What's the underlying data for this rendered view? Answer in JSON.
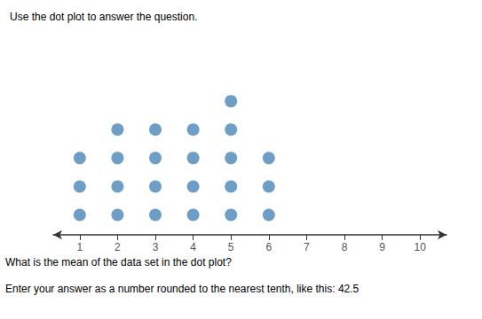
{
  "chart_data": {
    "type": "dot",
    "title": "Use the dot plot to answer the question.",
    "annotations": [
      "What is the mean of the data set in the dot plot?",
      "Enter your answer as a number rounded to the nearest tenth, like this: 42.5"
    ],
    "x": [
      1,
      2,
      3,
      4,
      5,
      6
    ],
    "values": [
      3,
      4,
      4,
      4,
      5,
      3
    ],
    "color": "#4a86b8",
    "xlim": [
      0.3,
      10.7
    ],
    "xticks": [
      1,
      2,
      3,
      4,
      5,
      6,
      7,
      8,
      9,
      10
    ],
    "ylim": [
      0.3,
      7.0
    ],
    "tick_labels": "x",
    "grid": false
  }
}
